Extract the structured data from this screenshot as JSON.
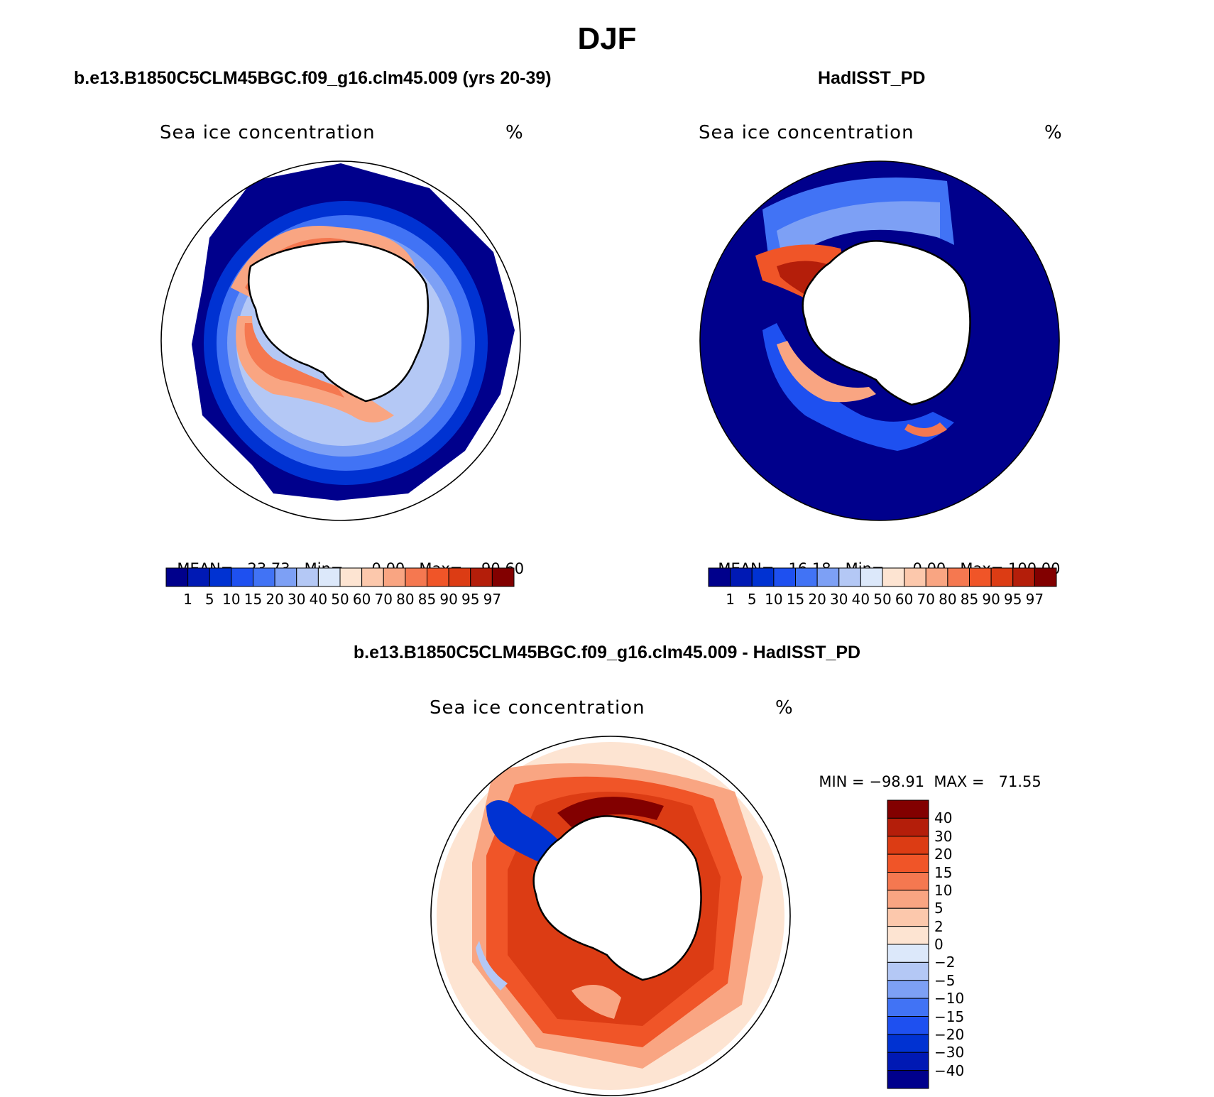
{
  "title": "DJF",
  "colors": {
    "seq": [
      "#00008c",
      "#0019b4",
      "#0032d2",
      "#1e50f0",
      "#4173f5",
      "#7da0f5",
      "#b4c8f5",
      "#dce8fa",
      "#fde4d2",
      "#fcc8ac",
      "#f9a582",
      "#f57850",
      "#f05528",
      "#dc3c14",
      "#b41e0a",
      "#820000"
    ],
    "div": [
      "#00008c",
      "#0019b4",
      "#0032d2",
      "#1e50f0",
      "#4173f5",
      "#7da0f5",
      "#b4c8f5",
      "#dce8fa",
      "#fde4d2",
      "#fcc8ac",
      "#f9a582",
      "#f57850",
      "#f05528",
      "#dc3c14",
      "#b41e0a",
      "#820000"
    ]
  },
  "panels": [
    {
      "id": "model",
      "title": "b.e13.B1850C5CLM45BGC.f09_g16.clm45.009 (yrs 20-39)",
      "variable": "Sea ice concentration",
      "units": "%",
      "stats": {
        "mean_label": "MEAN=",
        "mean": "23.73",
        "min_label": "Min=",
        "min": "0.00",
        "max_label": "Max=",
        "max": "90.60"
      },
      "colorbar_labels": [
        "1",
        "5",
        "10",
        "15",
        "20",
        "30",
        "40",
        "50",
        "60",
        "70",
        "80",
        "85",
        "90",
        "95",
        "97"
      ]
    },
    {
      "id": "obs",
      "title": "HadISST_PD",
      "variable": "Sea ice concentration",
      "units": "%",
      "stats": {
        "mean_label": "MEAN=",
        "mean": "16.18",
        "min_label": "Min=",
        "min": "0.00",
        "max_label": "Max=",
        "max": "100.00"
      },
      "colorbar_labels": [
        "1",
        "5",
        "10",
        "15",
        "20",
        "30",
        "40",
        "50",
        "60",
        "70",
        "80",
        "85",
        "90",
        "95",
        "97"
      ]
    },
    {
      "id": "diff",
      "title": "b.e13.B1850C5CLM45BGC.f09_g16.clm45.009 - HadISST_PD",
      "variable": "Sea ice concentration",
      "units": "%",
      "stats": {
        "min_label": "MIN =",
        "min": "−98.91",
        "max_label": "MAX =",
        "max": "71.55"
      },
      "colorbar_labels": [
        "40",
        "30",
        "20",
        "15",
        "10",
        "5",
        "2",
        "0",
        "−2",
        "−5",
        "−10",
        "−15",
        "−20",
        "−30",
        "−40"
      ]
    }
  ],
  "chart_data": [
    {
      "type": "heatmap",
      "title": "b.e13.B1850C5CLM45BGC.f09_g16.clm45.009 (yrs 20-39)",
      "variable": "Sea ice concentration",
      "units": "%",
      "projection": "south polar stereographic",
      "season": "DJF",
      "mean": 23.73,
      "min": 0.0,
      "max": 90.6,
      "levels": [
        1,
        5,
        10,
        15,
        20,
        30,
        40,
        50,
        60,
        70,
        80,
        85,
        90,
        95,
        97
      ]
    },
    {
      "type": "heatmap",
      "title": "HadISST_PD",
      "variable": "Sea ice concentration",
      "units": "%",
      "projection": "south polar stereographic",
      "season": "DJF",
      "mean": 16.18,
      "min": 0.0,
      "max": 100.0,
      "levels": [
        1,
        5,
        10,
        15,
        20,
        30,
        40,
        50,
        60,
        70,
        80,
        85,
        90,
        95,
        97
      ]
    },
    {
      "type": "heatmap",
      "title": "b.e13.B1850C5CLM45BGC.f09_g16.clm45.009 - HadISST_PD",
      "variable": "Sea ice concentration",
      "units": "%",
      "projection": "south polar stereographic",
      "season": "DJF",
      "min": -98.91,
      "max": 71.55,
      "levels": [
        -40,
        -30,
        -20,
        -15,
        -10,
        -5,
        -2,
        0,
        2,
        5,
        10,
        15,
        20,
        30,
        40
      ]
    }
  ]
}
